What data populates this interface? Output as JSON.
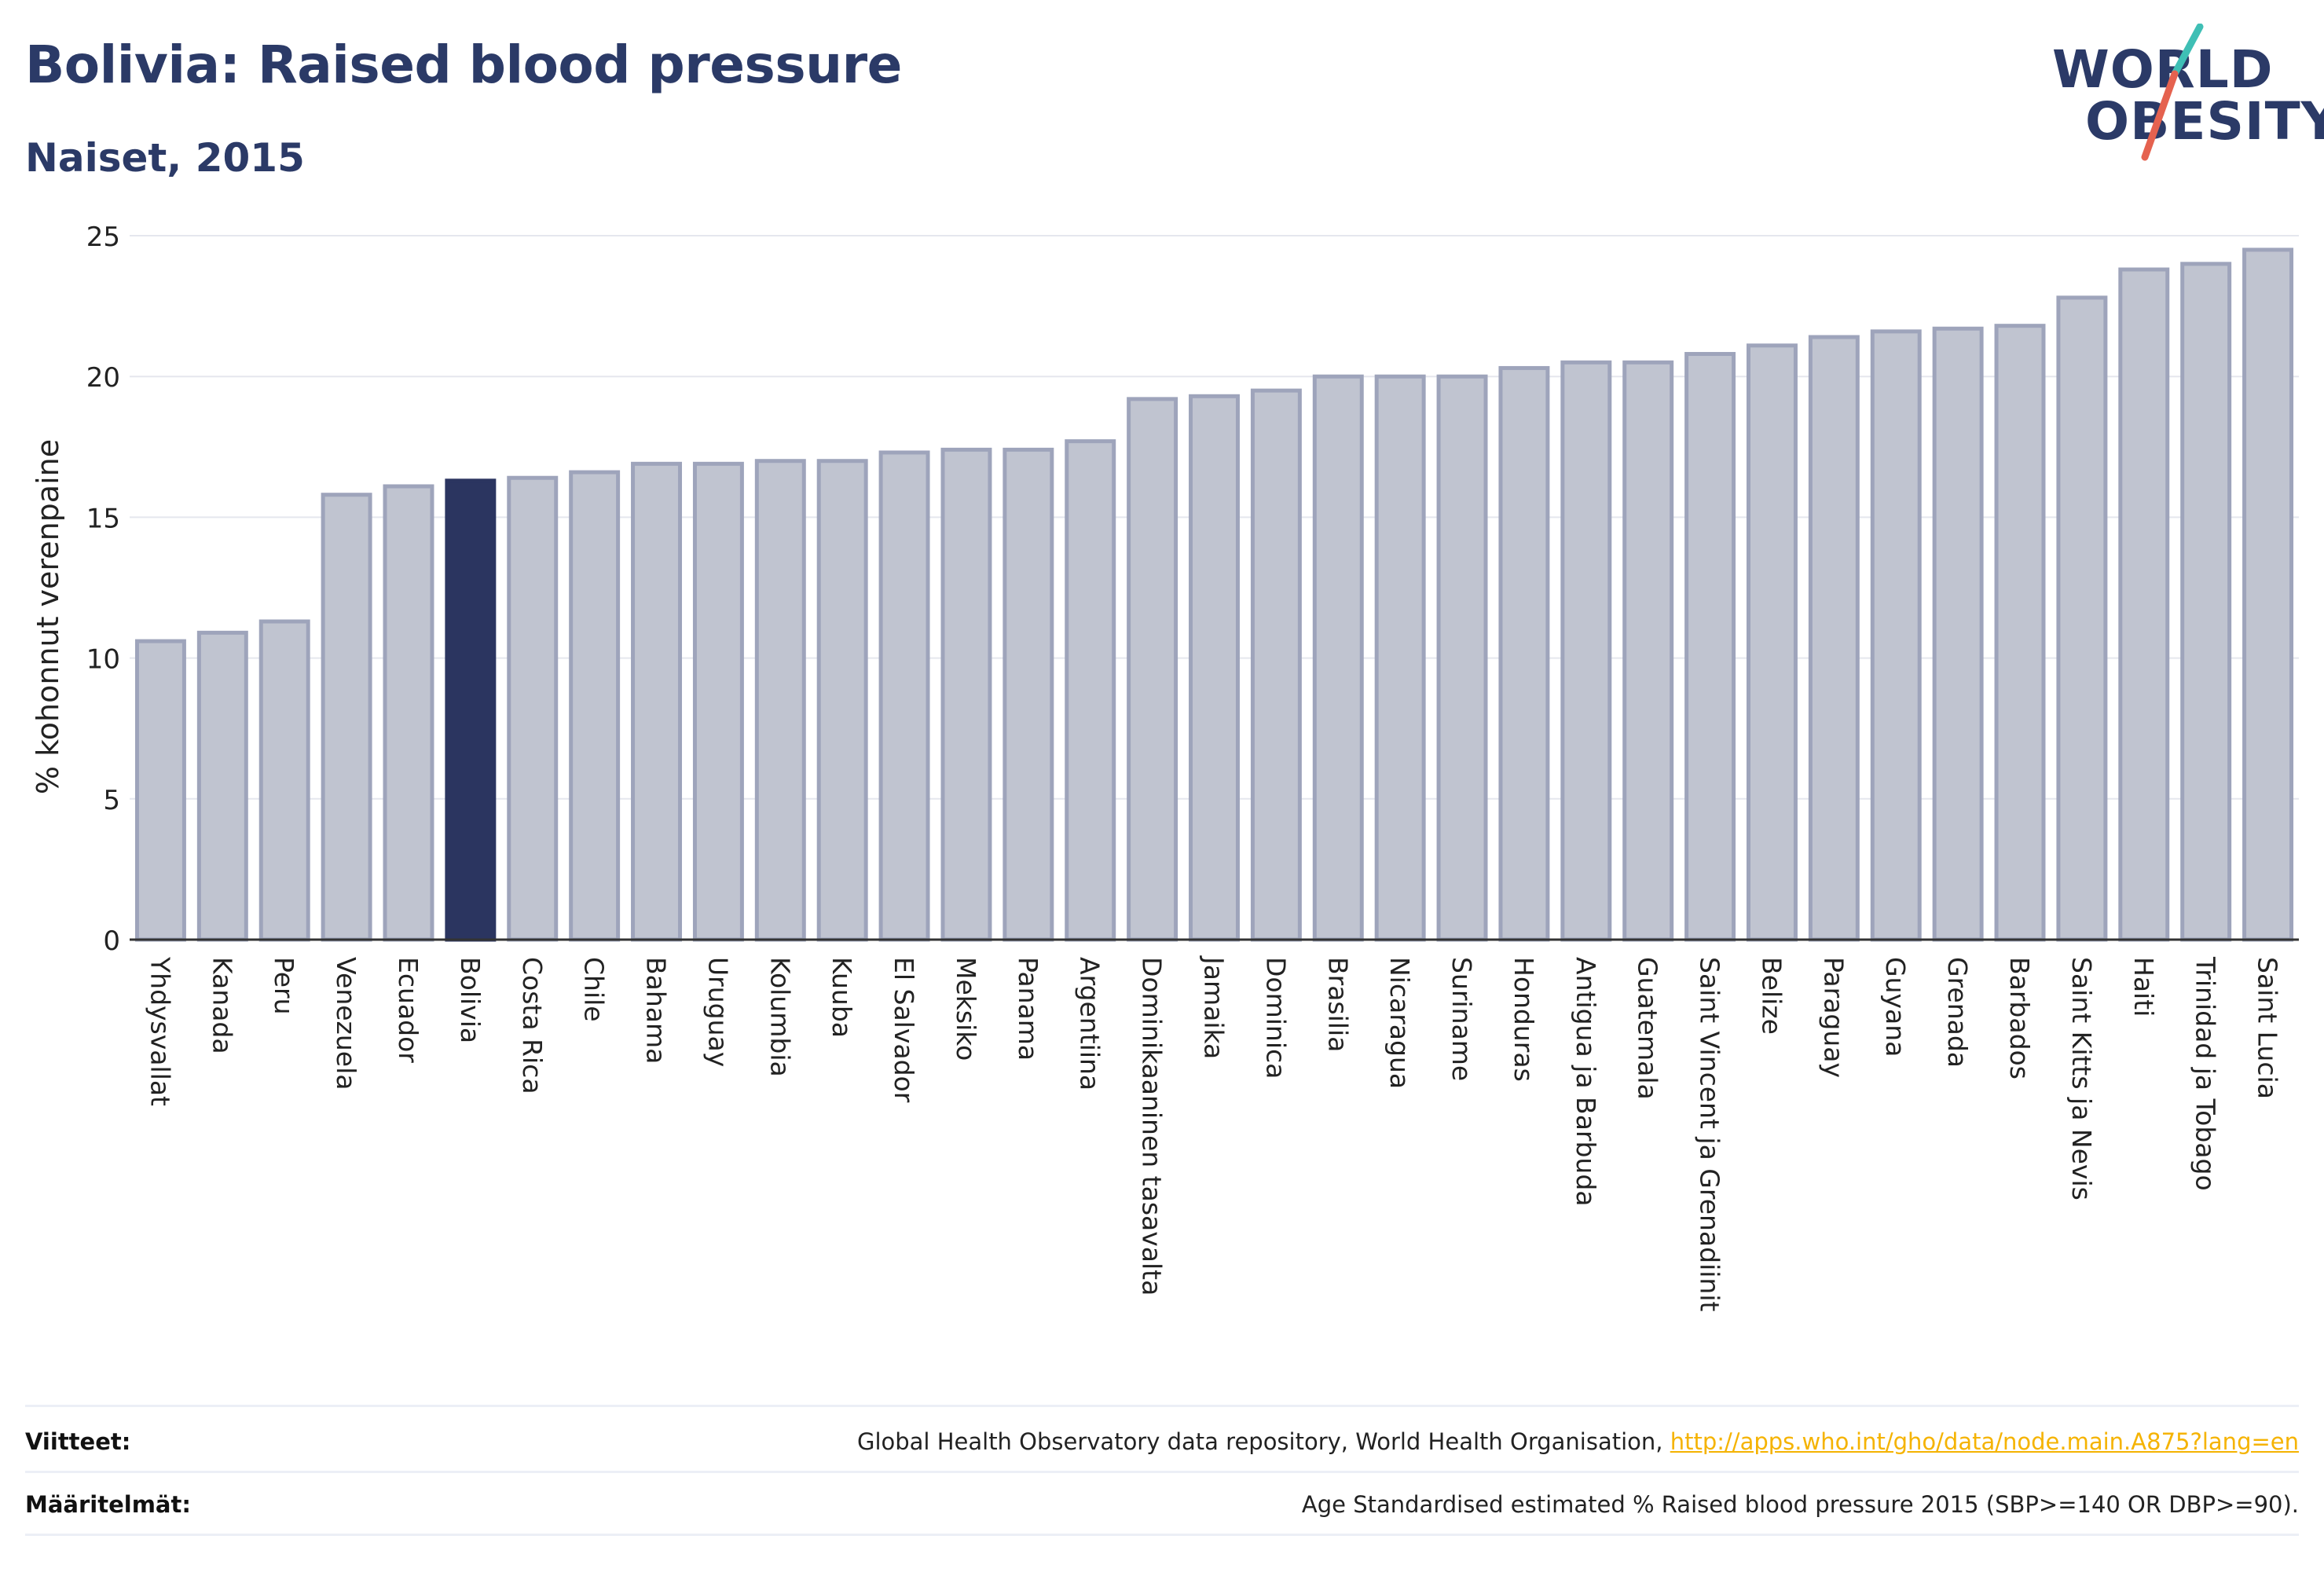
{
  "header": {
    "title": "Bolivia: Raised blood pressure",
    "subtitle": "Naiset, 2015"
  },
  "logo": {
    "line1": "WORLD",
    "line2": "OBESITY",
    "accent_colors": [
      "#3fbfb5",
      "#e5624f"
    ]
  },
  "chart_data": {
    "type": "bar",
    "ylabel": "% kohonnut verenpaine",
    "ylim": [
      0,
      25
    ],
    "yticks": [
      0,
      5,
      10,
      15,
      20,
      25
    ],
    "grid": true,
    "highlight": "Bolivia",
    "colors": {
      "bar": "#c0c4d0",
      "bar_border": "#9ea4bb",
      "highlight": "#2b3560",
      "axis": "#333333",
      "grid": "#e5e7ee"
    },
    "categories": [
      "Yhdysvallat",
      "Kanada",
      "Peru",
      "Venezuela",
      "Ecuador",
      "Bolivia",
      "Costa Rica",
      "Chile",
      "Bahama",
      "Uruguay",
      "Kolumbia",
      "Kuuba",
      "El Salvador",
      "Meksiko",
      "Panama",
      "Argentiina",
      "Dominikaaninen tasavalta",
      "Jamaika",
      "Dominica",
      "Brasilia",
      "Nicaragua",
      "Suriname",
      "Honduras",
      "Antigua ja Barbuda",
      "Guatemala",
      "Saint Vincent ja Grenadiinit",
      "Belize",
      "Paraguay",
      "Guyana",
      "Grenada",
      "Barbados",
      "Saint Kitts ja Nevis",
      "Haiti",
      "Trinidad ja Tobago",
      "Saint Lucia"
    ],
    "values": [
      10.6,
      10.9,
      11.3,
      15.8,
      16.1,
      16.3,
      16.4,
      16.6,
      16.9,
      16.9,
      17.0,
      17.0,
      17.3,
      17.4,
      17.4,
      17.7,
      19.2,
      19.3,
      19.5,
      20.0,
      20.0,
      20.0,
      20.3,
      20.5,
      20.5,
      20.8,
      21.1,
      21.4,
      21.6,
      21.7,
      21.8,
      22.8,
      23.8,
      24.0,
      24.5
    ]
  },
  "footer": {
    "references_label": "Viitteet:",
    "references_text": "Global Health Observatory data repository, World Health Organisation, ",
    "references_link": "http://apps.who.int/gho/data/node.main.A875?lang=en",
    "definitions_label": "Määritelmät:",
    "definitions_text": "Age Standardised estimated % Raised blood pressure 2015 (SBP>=140 OR DBP>=90)."
  }
}
